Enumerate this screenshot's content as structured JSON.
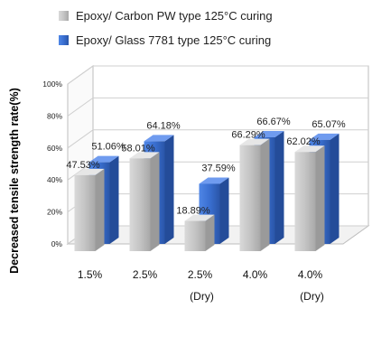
{
  "chart_data": {
    "type": "bar",
    "title": "",
    "xlabel": "",
    "ylabel": "Decreased tensile strength rate(%)",
    "ylim": [
      0,
      100
    ],
    "yticks": [
      "0%",
      "20%",
      "40%",
      "60%",
      "80%",
      "100%"
    ],
    "categories": [
      {
        "line1": "1.5%",
        "line2": ""
      },
      {
        "line1": "2.5%",
        "line2": ""
      },
      {
        "line1": "2.5%",
        "line2": "(Dry)"
      },
      {
        "line1": "4.0%",
        "line2": ""
      },
      {
        "line1": "4.0%",
        "line2": "(Dry)"
      }
    ],
    "series": [
      {
        "name": "Epoxy/ Carbon PW type 125°C curing",
        "color": "#c0c0c0",
        "values": [
          47.53,
          58.01,
          18.89,
          66.29,
          62.02
        ],
        "labels": [
          "47.53%",
          "58.01%",
          "18.89%",
          "66.29%",
          "62.02%"
        ]
      },
      {
        "name": "Epoxy/ Glass 7781 type 125°C curing",
        "color": "#3a6fd1",
        "values": [
          51.06,
          64.18,
          37.59,
          66.67,
          65.07
        ],
        "labels": [
          "51.06%",
          "64.18%",
          "37.59%",
          "66.67%",
          "65.07%"
        ]
      }
    ],
    "legend_position": "top",
    "grid": true
  }
}
